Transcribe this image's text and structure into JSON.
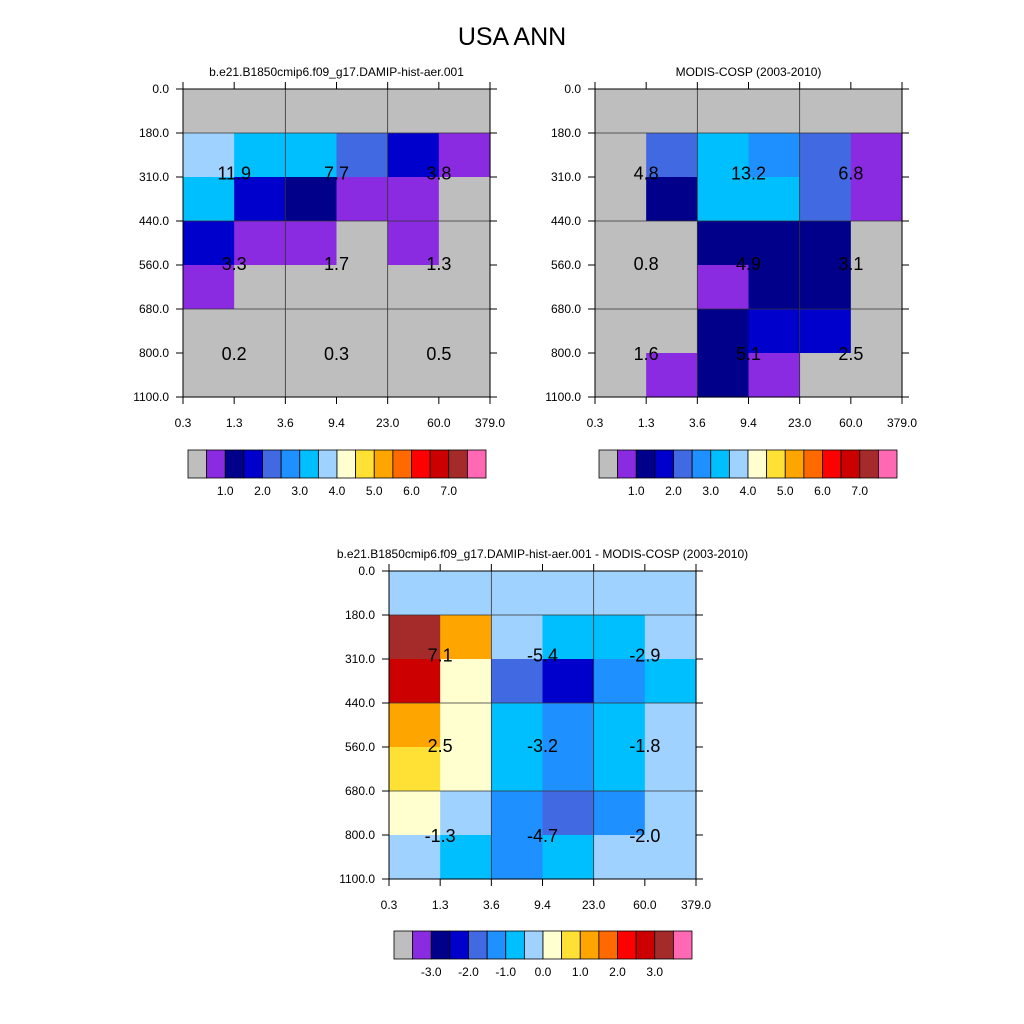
{
  "page_title": "USA ANN",
  "palette": {
    "base": [
      "#bebebe",
      "#8a2be2",
      "#00008b",
      "#0000cd",
      "#4169e1",
      "#1e90ff",
      "#00bfff",
      "#a0d2ff",
      "#ffffd0",
      "#ffe135",
      "#ffa500",
      "#ff6a00",
      "#ff0000",
      "#cd0000",
      "#a52a2a",
      "#ff69b4"
    ],
    "diff": [
      "#bebebe",
      "#8a2be2",
      "#00008b",
      "#0000cd",
      "#4169e1",
      "#1e90ff",
      "#00bfff",
      "#a0d2ff",
      "#ffffd0",
      "#ffe135",
      "#ffa500",
      "#ff6a00",
      "#ff0000",
      "#cd0000",
      "#a52a2a",
      "#ff69b4"
    ]
  },
  "chart_data": [
    {
      "type": "heatmap",
      "title": "b.e21.B1850cmip6.f09_g17.DAMIP-hist-aer.001",
      "x_ticks": [
        "0.3",
        "1.3",
        "3.6",
        "9.4",
        "23.0",
        "60.0",
        "379.0"
      ],
      "y_ticks": [
        "0.0",
        "180.0",
        "310.0",
        "440.0",
        "560.0",
        "680.0",
        "800.0",
        "1100.0"
      ],
      "cell_color_index": [
        [
          0,
          0,
          0,
          0,
          0,
          0
        ],
        [
          7,
          6,
          6,
          4,
          3,
          1
        ],
        [
          6,
          3,
          2,
          1,
          1,
          0
        ],
        [
          3,
          1,
          1,
          0,
          1,
          0
        ],
        [
          1,
          0,
          0,
          0,
          0,
          0
        ],
        [
          0,
          0,
          0,
          0,
          0,
          0
        ],
        [
          0,
          0,
          0,
          0,
          0,
          0
        ]
      ],
      "block_labels": [
        [
          "11.9",
          "7.7",
          "3.8"
        ],
        [
          "3.3",
          "1.7",
          "1.3"
        ],
        [
          "0.2",
          "0.3",
          "0.5"
        ]
      ],
      "colorbar": {
        "palette": "base",
        "labels": [
          "1.0",
          "2.0",
          "3.0",
          "4.0",
          "5.0",
          "6.0",
          "7.0"
        ],
        "label_boundaries": [
          2,
          4,
          6,
          8,
          10,
          12,
          14
        ]
      }
    },
    {
      "type": "heatmap",
      "title": "MODIS-COSP (2003-2010)",
      "x_ticks": [
        "0.3",
        "1.3",
        "3.6",
        "9.4",
        "23.0",
        "60.0",
        "379.0"
      ],
      "y_ticks": [
        "0.0",
        "180.0",
        "310.0",
        "440.0",
        "560.0",
        "680.0",
        "800.0",
        "1100.0"
      ],
      "cell_color_index": [
        [
          0,
          0,
          0,
          0,
          0,
          0
        ],
        [
          0,
          4,
          6,
          5,
          4,
          1
        ],
        [
          0,
          2,
          6,
          6,
          4,
          1
        ],
        [
          0,
          0,
          2,
          2,
          2,
          0
        ],
        [
          0,
          0,
          1,
          2,
          2,
          0
        ],
        [
          0,
          0,
          2,
          3,
          3,
          0
        ],
        [
          0,
          1,
          2,
          1,
          0,
          0
        ]
      ],
      "block_labels": [
        [
          "4.8",
          "13.2",
          "6.8"
        ],
        [
          "0.8",
          "4.9",
          "3.1"
        ],
        [
          "1.6",
          "5.1",
          "2.5"
        ]
      ],
      "colorbar": {
        "palette": "base",
        "labels": [
          "1.0",
          "2.0",
          "3.0",
          "4.0",
          "5.0",
          "6.0",
          "7.0"
        ],
        "label_boundaries": [
          2,
          4,
          6,
          8,
          10,
          12,
          14
        ]
      }
    },
    {
      "type": "heatmap",
      "title": "b.e21.B1850cmip6.f09_g17.DAMIP-hist-aer.001 - MODIS-COSP (2003-2010)",
      "x_ticks": [
        "0.3",
        "1.3",
        "3.6",
        "9.4",
        "23.0",
        "60.0",
        "379.0"
      ],
      "y_ticks": [
        "0.0",
        "180.0",
        "310.0",
        "440.0",
        "560.0",
        "680.0",
        "800.0",
        "1100.0"
      ],
      "cell_color_index": [
        [
          7,
          7,
          7,
          7,
          7,
          7
        ],
        [
          14,
          10,
          7,
          6,
          6,
          7
        ],
        [
          13,
          8,
          4,
          3,
          5,
          6
        ],
        [
          10,
          8,
          6,
          5,
          6,
          7
        ],
        [
          9,
          8,
          6,
          5,
          6,
          7
        ],
        [
          8,
          7,
          5,
          4,
          5,
          7
        ],
        [
          7,
          6,
          5,
          6,
          7,
          7
        ]
      ],
      "block_labels": [
        [
          "7.1",
          "-5.4",
          "-2.9"
        ],
        [
          "2.5",
          "-3.2",
          "-1.8"
        ],
        [
          "-1.3",
          "-4.7",
          "-2.0"
        ]
      ],
      "colorbar": {
        "palette": "diff",
        "labels": [
          "-3.0",
          "-2.0",
          "-1.0",
          "0.0",
          "1.0",
          "2.0",
          "3.0"
        ],
        "label_boundaries": [
          2,
          4,
          6,
          8,
          10,
          12,
          14
        ]
      }
    }
  ]
}
